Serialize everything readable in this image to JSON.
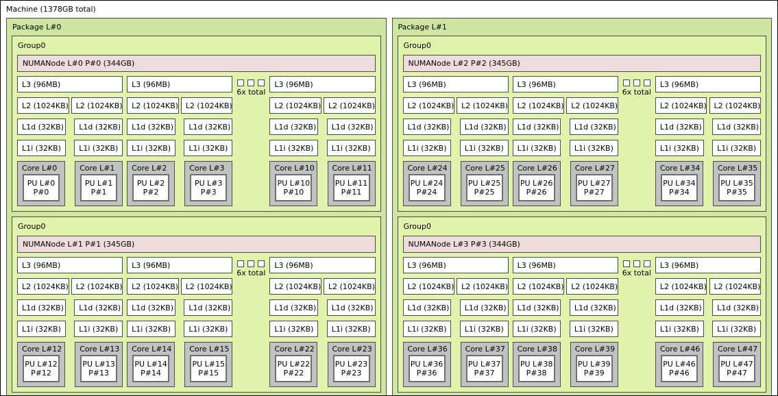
{
  "machine": {
    "label": "Machine (1378GB total)"
  },
  "colors": {
    "package_bg": "#cfe5a2",
    "group_bg": "#e2f3ae",
    "numanode_bg": "#eedcdc",
    "core_bg": "#c2c2c2",
    "cache_bg": "#ffffff",
    "pu_bg": "#ffffff",
    "box_border": "#4a4a4a",
    "pu_border": "#6f6f6f",
    "machine_border": "#000000"
  },
  "packages": [
    {
      "label": "Package L#0",
      "groups": [
        {
          "label": "Group0",
          "numanode": "NUMANode L#0 P#0 (344GB)",
          "collapsed_label": "6x total",
          "collapsed_squares": 3,
          "clusters": [
            {
              "l3": "L3 (96MB)",
              "l2": [
                "L2 (1024KB)",
                "L2 (1024KB)"
              ],
              "l1d": [
                "L1d (32KB)",
                "L1d (32KB)"
              ],
              "l1i": [
                "L1i (32KB)",
                "L1i (32KB)"
              ],
              "cores": [
                {
                  "label": "Core L#0",
                  "pu_lines": [
                    "PU L#0",
                    "P#0"
                  ]
                },
                {
                  "label": "Core L#1",
                  "pu_lines": [
                    "PU L#1",
                    "P#1"
                  ]
                }
              ]
            },
            {
              "l3": "L3 (96MB)",
              "l2": [
                "L2 (1024KB)",
                "L2 (1024KB)"
              ],
              "l1d": [
                "L1d (32KB)",
                "L1d (32KB)"
              ],
              "l1i": [
                "L1i (32KB)",
                "L1i (32KB)"
              ],
              "cores": [
                {
                  "label": "Core L#2",
                  "pu_lines": [
                    "PU L#2",
                    "P#2"
                  ]
                },
                {
                  "label": "Core L#3",
                  "pu_lines": [
                    "PU L#3",
                    "P#3"
                  ]
                }
              ]
            },
            {
              "l3": "L3 (96MB)",
              "l2": [
                "L2 (1024KB)",
                "L2 (1024KB)"
              ],
              "l1d": [
                "L1d (32KB)",
                "L1d (32KB)"
              ],
              "l1i": [
                "L1i (32KB)",
                "L1i (32KB)"
              ],
              "cores": [
                {
                  "label": "Core L#10",
                  "pu_lines": [
                    "PU L#10",
                    "P#10"
                  ]
                },
                {
                  "label": "Core L#11",
                  "pu_lines": [
                    "PU L#11",
                    "P#11"
                  ]
                }
              ]
            }
          ]
        },
        {
          "label": "Group0",
          "numanode": "NUMANode L#1 P#1 (345GB)",
          "collapsed_label": "6x total",
          "collapsed_squares": 3,
          "clusters": [
            {
              "l3": "L3 (96MB)",
              "l2": [
                "L2 (1024KB)",
                "L2 (1024KB)"
              ],
              "l1d": [
                "L1d (32KB)",
                "L1d (32KB)"
              ],
              "l1i": [
                "L1i (32KB)",
                "L1i (32KB)"
              ],
              "cores": [
                {
                  "label": "Core L#12",
                  "pu_lines": [
                    "PU L#12",
                    "P#12"
                  ]
                },
                {
                  "label": "Core L#13",
                  "pu_lines": [
                    "PU L#13",
                    "P#13"
                  ]
                }
              ]
            },
            {
              "l3": "L3 (96MB)",
              "l2": [
                "L2 (1024KB)",
                "L2 (1024KB)"
              ],
              "l1d": [
                "L1d (32KB)",
                "L1d (32KB)"
              ],
              "l1i": [
                "L1i (32KB)",
                "L1i (32KB)"
              ],
              "cores": [
                {
                  "label": "Core L#14",
                  "pu_lines": [
                    "PU L#14",
                    "P#14"
                  ]
                },
                {
                  "label": "Core L#15",
                  "pu_lines": [
                    "PU L#15",
                    "P#15"
                  ]
                }
              ]
            },
            {
              "l3": "L3 (96MB)",
              "l2": [
                "L2 (1024KB)",
                "L2 (1024KB)"
              ],
              "l1d": [
                "L1d (32KB)",
                "L1d (32KB)"
              ],
              "l1i": [
                "L1i (32KB)",
                "L1i (32KB)"
              ],
              "cores": [
                {
                  "label": "Core L#22",
                  "pu_lines": [
                    "PU L#22",
                    "P#22"
                  ]
                },
                {
                  "label": "Core L#23",
                  "pu_lines": [
                    "PU L#23",
                    "P#23"
                  ]
                }
              ]
            }
          ]
        }
      ]
    },
    {
      "label": "Package L#1",
      "groups": [
        {
          "label": "Group0",
          "numanode": "NUMANode L#2 P#2 (345GB)",
          "collapsed_label": "6x total",
          "collapsed_squares": 3,
          "clusters": [
            {
              "l3": "L3 (96MB)",
              "l2": [
                "L2 (1024KB)",
                "L2 (1024KB)"
              ],
              "l1d": [
                "L1d (32KB)",
                "L1d (32KB)"
              ],
              "l1i": [
                "L1i (32KB)",
                "L1i (32KB)"
              ],
              "cores": [
                {
                  "label": "Core L#24",
                  "pu_lines": [
                    "PU L#24",
                    "P#24"
                  ]
                },
                {
                  "label": "Core L#25",
                  "pu_lines": [
                    "PU L#25",
                    "P#25"
                  ]
                }
              ]
            },
            {
              "l3": "L3 (96MB)",
              "l2": [
                "L2 (1024KB)",
                "L2 (1024KB)"
              ],
              "l1d": [
                "L1d (32KB)",
                "L1d (32KB)"
              ],
              "l1i": [
                "L1i (32KB)",
                "L1i (32KB)"
              ],
              "cores": [
                {
                  "label": "Core L#26",
                  "pu_lines": [
                    "PU L#26",
                    "P#26"
                  ]
                },
                {
                  "label": "Core L#27",
                  "pu_lines": [
                    "PU L#27",
                    "P#27"
                  ]
                }
              ]
            },
            {
              "l3": "L3 (96MB)",
              "l2": [
                "L2 (1024KB)",
                "L2 (1024KB)"
              ],
              "l1d": [
                "L1d (32KB)",
                "L1d (32KB)"
              ],
              "l1i": [
                "L1i (32KB)",
                "L1i (32KB)"
              ],
              "cores": [
                {
                  "label": "Core L#34",
                  "pu_lines": [
                    "PU L#34",
                    "P#34"
                  ]
                },
                {
                  "label": "Core L#35",
                  "pu_lines": [
                    "PU L#35",
                    "P#35"
                  ]
                }
              ]
            }
          ]
        },
        {
          "label": "Group0",
          "numanode": "NUMANode L#3 P#3 (344GB)",
          "collapsed_label": "6x total",
          "collapsed_squares": 3,
          "clusters": [
            {
              "l3": "L3 (96MB)",
              "l2": [
                "L2 (1024KB)",
                "L2 (1024KB)"
              ],
              "l1d": [
                "L1d (32KB)",
                "L1d (32KB)"
              ],
              "l1i": [
                "L1i (32KB)",
                "L1i (32KB)"
              ],
              "cores": [
                {
                  "label": "Core L#36",
                  "pu_lines": [
                    "PU L#36",
                    "P#36"
                  ]
                },
                {
                  "label": "Core L#37",
                  "pu_lines": [
                    "PU L#37",
                    "P#37"
                  ]
                }
              ]
            },
            {
              "l3": "L3 (96MB)",
              "l2": [
                "L2 (1024KB)",
                "L2 (1024KB)"
              ],
              "l1d": [
                "L1d (32KB)",
                "L1d (32KB)"
              ],
              "l1i": [
                "L1i (32KB)",
                "L1i (32KB)"
              ],
              "cores": [
                {
                  "label": "Core L#38",
                  "pu_lines": [
                    "PU L#38",
                    "P#38"
                  ]
                },
                {
                  "label": "Core L#39",
                  "pu_lines": [
                    "PU L#39",
                    "P#39"
                  ]
                }
              ]
            },
            {
              "l3": "L3 (96MB)",
              "l2": [
                "L2 (1024KB)",
                "L2 (1024KB)"
              ],
              "l1d": [
                "L1d (32KB)",
                "L1d (32KB)"
              ],
              "l1i": [
                "L1i (32KB)",
                "L1i (32KB)"
              ],
              "cores": [
                {
                  "label": "Core L#46",
                  "pu_lines": [
                    "PU L#46",
                    "P#46"
                  ]
                },
                {
                  "label": "Core L#47",
                  "pu_lines": [
                    "PU L#47",
                    "P#47"
                  ]
                }
              ]
            }
          ]
        }
      ]
    }
  ]
}
